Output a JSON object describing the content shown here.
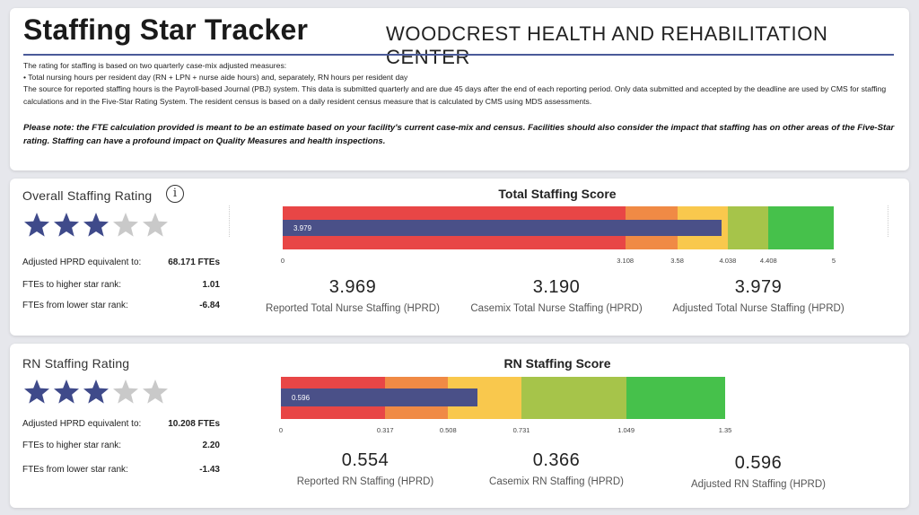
{
  "header": {
    "title": "Staffing Star Tracker",
    "facility": "WOODCREST HEALTH AND REHABILITATION CENTER",
    "description": [
      "The rating for staffing is based on two quarterly case-mix adjusted measures:",
      "• Total nursing hours per resident day (RN + LPN + nurse aide hours) and, separately, RN hours per resident day",
      "The source for reported staffing hours is the Payroll-based Journal (PBJ) system.  This data is submitted quarterly and are due 45 days after the end of each reporting period. Only data submitted and accepted by the deadline are used by CMS for staffing calculations and in the Five-Star Rating System. The resident census is based on a daily resident census measure that is calculated by CMS using MDS assessments."
    ],
    "note": "Please note: the FTE calculation provided is meant to be an estimate based on your facility's current case-mix and census.  Facilities should also consider the impact that staffing has on other areas of the Five-Star rating.  Staffing can have a profound impact on Quality Measures and health inspections."
  },
  "total": {
    "rating_title": "Overall Staffing Rating",
    "info_icon": "info-circle-icon",
    "stars_filled": 3,
    "stars_total": 5,
    "stats": [
      {
        "label": "Adjusted HPRD equivalent to:",
        "value": "68.171 FTEs"
      },
      {
        "label": "FTEs to higher star rank:",
        "value": "1.01"
      },
      {
        "label": "FTEs from lower star rank:",
        "value": "-6.84"
      }
    ],
    "score_title": "Total Staffing Score",
    "bar_value": 3.979,
    "bar_label": "3.979",
    "scale_max": 5,
    "thresholds": [
      3.108,
      3.58,
      4.038,
      4.408,
      5
    ],
    "tick_labels": [
      "0",
      "3.108",
      "3.58",
      "4.038",
      "4.408",
      "5"
    ],
    "metrics": [
      {
        "value": "3.969",
        "label": "Reported Total Nurse Staffing (HPRD)"
      },
      {
        "value": "3.190",
        "label": "Casemix Total Nurse Staffing (HPRD)"
      },
      {
        "value": "3.979",
        "label": "Adjusted Total Nurse Staffing (HPRD)"
      }
    ]
  },
  "rn": {
    "rating_title": "RN Staffing Rating",
    "stars_filled": 3,
    "stars_total": 5,
    "stats": [
      {
        "label": "Adjusted HPRD equivalent to:",
        "value": "10.208 FTEs"
      },
      {
        "label": "FTEs to higher star rank:",
        "value": "2.20"
      },
      {
        "label": "FTEs from lower star rank:",
        "value": "-1.43"
      }
    ],
    "score_title": "RN Staffing Score",
    "bar_value": 0.596,
    "bar_label": "0.596",
    "scale_max": 1.35,
    "thresholds": [
      0.317,
      0.508,
      0.731,
      1.049,
      1.35
    ],
    "tick_labels": [
      "0",
      "0.317",
      "0.508",
      "0.731",
      "1.049",
      "1.35"
    ],
    "metrics": [
      {
        "value": "0.554",
        "label": "Reported RN Staffing (HPRD)"
      },
      {
        "value": "0.366",
        "label": "Casemix RN Staffing (HPRD)"
      },
      {
        "value": "0.596",
        "label": "Adjusted RN Staffing (HPRD)"
      }
    ]
  },
  "colors": {
    "band_colors": [
      "#e84646",
      "#f08a45",
      "#f9c84d",
      "#a6c44a",
      "#46c14b"
    ],
    "actual_bar": "#4a5088",
    "star_filled": "#3f4a8a",
    "star_empty": "#c9c9c9",
    "title_rule": "#4a5a99"
  }
}
